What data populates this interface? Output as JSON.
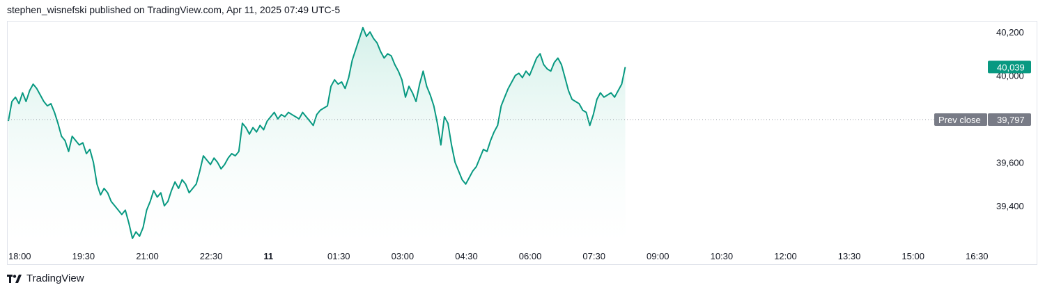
{
  "header": {
    "publish_line": "stephen_wisnefski published on TradingView.com, Apr 11, 2025 07:49 UTC-5"
  },
  "footer": {
    "logo_icon": "tradingview-logo-icon",
    "brand": "TradingView"
  },
  "colors": {
    "line": "#089981",
    "fill_top": "#cdeee6",
    "last_price_badge": "#089981",
    "prev_close_badge": "#787b86",
    "prev_close_line": "#9598a1"
  },
  "chart_data": {
    "type": "area",
    "ylim": [
      39180,
      40250
    ],
    "y_ticks": [
      {
        "value": 40200,
        "label": "40,200"
      },
      {
        "value": 40000,
        "label": "40,000"
      },
      {
        "value": 39600,
        "label": "39,600"
      },
      {
        "value": 39400,
        "label": "39,400"
      }
    ],
    "x_ticks": [
      {
        "label": "18:00",
        "bold": false
      },
      {
        "label": "19:30",
        "bold": false
      },
      {
        "label": "21:00",
        "bold": false
      },
      {
        "label": "22:30",
        "bold": false
      },
      {
        "label": "11",
        "bold": true
      },
      {
        "label": "01:30",
        "bold": false
      },
      {
        "label": "03:00",
        "bold": false
      },
      {
        "label": "04:30",
        "bold": false
      },
      {
        "label": "06:00",
        "bold": false
      },
      {
        "label": "07:30",
        "bold": false
      },
      {
        "label": "09:00",
        "bold": false
      },
      {
        "label": "10:30",
        "bold": false
      },
      {
        "label": "12:00",
        "bold": false
      },
      {
        "label": "13:30",
        "bold": false
      },
      {
        "label": "15:00",
        "bold": false
      },
      {
        "label": "16:30",
        "bold": false
      }
    ],
    "x_axis_note": "x values are minutes after 18:00 (Apr 10, UTC-5); each tick = 90 minutes",
    "last_price": {
      "value": 40039,
      "label": "40,039"
    },
    "prev_close": {
      "value": 39797,
      "label": "39,797",
      "text": "Prev close"
    },
    "series": [
      {
        "values": [
          [
            0,
            39790
          ],
          [
            5,
            39880
          ],
          [
            10,
            39900
          ],
          [
            15,
            39870
          ],
          [
            20,
            39920
          ],
          [
            25,
            39880
          ],
          [
            30,
            39930
          ],
          [
            35,
            39960
          ],
          [
            40,
            39940
          ],
          [
            45,
            39910
          ],
          [
            50,
            39880
          ],
          [
            55,
            39860
          ],
          [
            60,
            39870
          ],
          [
            65,
            39830
          ],
          [
            70,
            39780
          ],
          [
            75,
            39720
          ],
          [
            80,
            39700
          ],
          [
            85,
            39650
          ],
          [
            90,
            39720
          ],
          [
            95,
            39700
          ],
          [
            100,
            39680
          ],
          [
            105,
            39690
          ],
          [
            110,
            39640
          ],
          [
            115,
            39660
          ],
          [
            120,
            39600
          ],
          [
            125,
            39500
          ],
          [
            130,
            39450
          ],
          [
            135,
            39480
          ],
          [
            140,
            39460
          ],
          [
            145,
            39420
          ],
          [
            150,
            39400
          ],
          [
            155,
            39380
          ],
          [
            160,
            39360
          ],
          [
            165,
            39380
          ],
          [
            170,
            39320
          ],
          [
            175,
            39250
          ],
          [
            180,
            39280
          ],
          [
            185,
            39260
          ],
          [
            190,
            39300
          ],
          [
            195,
            39380
          ],
          [
            200,
            39420
          ],
          [
            205,
            39470
          ],
          [
            210,
            39440
          ],
          [
            215,
            39460
          ],
          [
            220,
            39400
          ],
          [
            225,
            39420
          ],
          [
            230,
            39470
          ],
          [
            235,
            39510
          ],
          [
            240,
            39480
          ],
          [
            245,
            39520
          ],
          [
            250,
            39500
          ],
          [
            255,
            39460
          ],
          [
            260,
            39480
          ],
          [
            265,
            39500
          ],
          [
            270,
            39560
          ],
          [
            275,
            39630
          ],
          [
            280,
            39610
          ],
          [
            285,
            39590
          ],
          [
            290,
            39620
          ],
          [
            295,
            39600
          ],
          [
            300,
            39570
          ],
          [
            305,
            39590
          ],
          [
            310,
            39620
          ],
          [
            315,
            39640
          ],
          [
            320,
            39630
          ],
          [
            325,
            39650
          ],
          [
            330,
            39780
          ],
          [
            335,
            39760
          ],
          [
            340,
            39730
          ],
          [
            345,
            39760
          ],
          [
            350,
            39740
          ],
          [
            355,
            39770
          ],
          [
            360,
            39750
          ],
          [
            365,
            39790
          ],
          [
            370,
            39810
          ],
          [
            375,
            39830
          ],
          [
            380,
            39800
          ],
          [
            385,
            39820
          ],
          [
            390,
            39810
          ],
          [
            395,
            39830
          ],
          [
            400,
            39820
          ],
          [
            405,
            39810
          ],
          [
            410,
            39800
          ],
          [
            415,
            39830
          ],
          [
            420,
            39810
          ],
          [
            425,
            39790
          ],
          [
            430,
            39770
          ],
          [
            435,
            39820
          ],
          [
            440,
            39840
          ],
          [
            445,
            39850
          ],
          [
            450,
            39860
          ],
          [
            455,
            39950
          ],
          [
            460,
            39980
          ],
          [
            465,
            39960
          ],
          [
            470,
            39970
          ],
          [
            475,
            39940
          ],
          [
            480,
            39990
          ],
          [
            485,
            40070
          ],
          [
            490,
            40120
          ],
          [
            495,
            40170
          ],
          [
            500,
            40220
          ],
          [
            505,
            40180
          ],
          [
            510,
            40200
          ],
          [
            515,
            40170
          ],
          [
            520,
            40150
          ],
          [
            525,
            40110
          ],
          [
            530,
            40080
          ],
          [
            535,
            40100
          ],
          [
            540,
            40090
          ],
          [
            545,
            40050
          ],
          [
            550,
            40020
          ],
          [
            555,
            39980
          ],
          [
            560,
            39900
          ],
          [
            565,
            39950
          ],
          [
            570,
            39920
          ],
          [
            575,
            39880
          ],
          [
            580,
            39960
          ],
          [
            585,
            40020
          ],
          [
            590,
            39950
          ],
          [
            595,
            39910
          ],
          [
            600,
            39860
          ],
          [
            605,
            39780
          ],
          [
            610,
            39680
          ],
          [
            615,
            39810
          ],
          [
            620,
            39780
          ],
          [
            625,
            39680
          ],
          [
            630,
            39600
          ],
          [
            635,
            39560
          ],
          [
            640,
            39520
          ],
          [
            645,
            39500
          ],
          [
            650,
            39530
          ],
          [
            655,
            39560
          ],
          [
            660,
            39580
          ],
          [
            665,
            39620
          ],
          [
            670,
            39660
          ],
          [
            675,
            39650
          ],
          [
            680,
            39700
          ],
          [
            685,
            39740
          ],
          [
            690,
            39770
          ],
          [
            695,
            39860
          ],
          [
            700,
            39900
          ],
          [
            705,
            39940
          ],
          [
            710,
            39970
          ],
          [
            715,
            40000
          ],
          [
            720,
            40010
          ],
          [
            725,
            39990
          ],
          [
            730,
            40020
          ],
          [
            735,
            40000
          ],
          [
            740,
            40040
          ],
          [
            745,
            40080
          ],
          [
            750,
            40100
          ],
          [
            755,
            40050
          ],
          [
            760,
            40030
          ],
          [
            765,
            40020
          ],
          [
            770,
            40060
          ],
          [
            775,
            40080
          ],
          [
            780,
            40050
          ],
          [
            785,
            39990
          ],
          [
            790,
            39930
          ],
          [
            795,
            39890
          ],
          [
            800,
            39880
          ],
          [
            805,
            39870
          ],
          [
            810,
            39840
          ],
          [
            815,
            39830
          ],
          [
            820,
            39770
          ],
          [
            825,
            39820
          ],
          [
            830,
            39890
          ],
          [
            835,
            39920
          ],
          [
            840,
            39900
          ],
          [
            845,
            39910
          ],
          [
            850,
            39920
          ],
          [
            855,
            39900
          ],
          [
            860,
            39930
          ],
          [
            865,
            39960
          ],
          [
            870,
            40039
          ]
        ]
      }
    ]
  }
}
